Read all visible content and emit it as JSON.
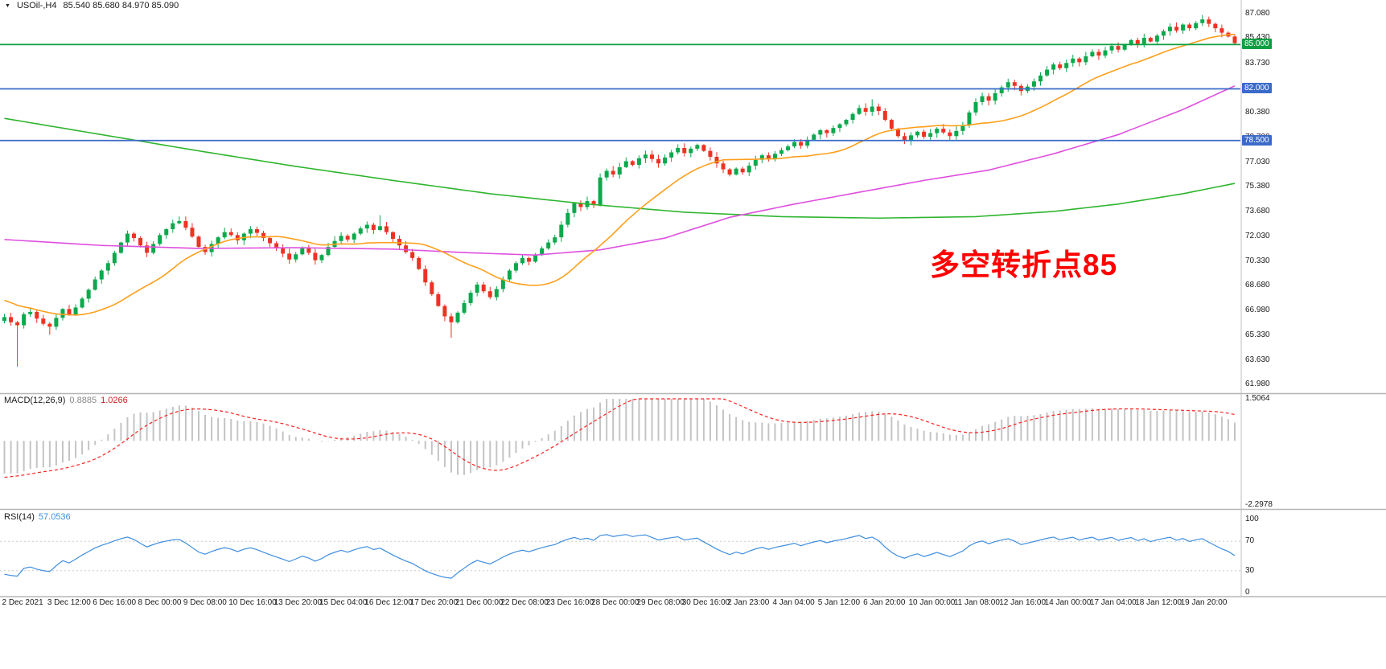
{
  "header": {
    "dropdown_icon": "▼",
    "symbol": "USOil-,H4",
    "ohlc": "85.540 85.680 84.970 85.090"
  },
  "annotation": {
    "text": "多空转折点85",
    "color": "#ff0000"
  },
  "macd_panel": {
    "label": "MACD(12,26,9)",
    "value_macd": "0.8885",
    "value_signal": "1.0266",
    "axis_max": "1.5064",
    "axis_min": "-2.2978"
  },
  "rsi_panel": {
    "label": "RSI(14)",
    "value": "57.0536",
    "axis_labels": [
      "100",
      "70",
      "30",
      "0"
    ]
  },
  "chart_data": {
    "type": "candlestick",
    "symbol": "USOil-",
    "timeframe": "H4",
    "current_ohlc": {
      "open": 85.54,
      "high": 85.68,
      "low": 84.97,
      "close": 85.09
    },
    "visible_price_range": [
      61.4,
      87.25
    ],
    "first_open": 66.3,
    "closes": [
      66.55,
      66.2,
      66.0,
      66.75,
      66.9,
      66.45,
      66.1,
      65.9,
      66.5,
      67.1,
      66.7,
      67.2,
      67.8,
      68.4,
      69.1,
      69.7,
      70.2,
      70.9,
      71.6,
      72.2,
      71.9,
      71.4,
      70.9,
      71.5,
      72.1,
      72.5,
      72.9,
      73.05,
      72.6,
      72.0,
      71.3,
      70.95,
      71.5,
      71.95,
      72.3,
      72.1,
      71.75,
      72.2,
      72.5,
      72.25,
      71.9,
      71.55,
      71.2,
      70.85,
      70.45,
      70.8,
      71.2,
      70.9,
      70.4,
      70.75,
      71.3,
      71.7,
      72.05,
      71.8,
      72.2,
      72.55,
      72.8,
      72.45,
      72.7,
      72.3,
      71.85,
      71.4,
      70.95,
      70.55,
      69.8,
      68.9,
      68.1,
      67.3,
      66.6,
      66.2,
      66.85,
      67.5,
      68.2,
      68.75,
      68.3,
      67.9,
      68.45,
      69.1,
      69.7,
      70.2,
      70.55,
      70.3,
      70.75,
      71.2,
      71.6,
      71.95,
      72.8,
      73.6,
      74.25,
      74.0,
      74.4,
      74.15,
      76.0,
      76.45,
      76.2,
      76.7,
      77.1,
      76.85,
      77.3,
      77.55,
      77.25,
      76.95,
      77.35,
      77.7,
      78.0,
      77.65,
      77.95,
      78.2,
      77.8,
      77.4,
      76.95,
      76.55,
      76.2,
      76.6,
      76.35,
      76.8,
      77.2,
      77.5,
      77.25,
      77.6,
      77.85,
      78.1,
      78.4,
      78.15,
      78.55,
      78.9,
      79.2,
      79.0,
      79.35,
      79.6,
      79.9,
      80.3,
      80.7,
      80.45,
      80.8,
      80.5,
      79.9,
      79.3,
      78.8,
      78.5,
      78.85,
      79.1,
      78.75,
      79.0,
      79.3,
      79.05,
      78.8,
      79.15,
      79.55,
      80.4,
      81.1,
      81.5,
      81.2,
      81.7,
      82.1,
      82.45,
      82.2,
      81.85,
      82.15,
      82.5,
      82.9,
      83.3,
      83.65,
      83.4,
      83.75,
      84.05,
      83.8,
      84.2,
      84.5,
      84.25,
      84.6,
      84.9,
      84.65,
      85.0,
      85.3,
      85.05,
      85.45,
      85.2,
      85.6,
      85.9,
      86.2,
      85.95,
      86.35,
      86.1,
      86.45,
      86.7,
      86.4,
      86.1,
      85.8,
      85.54,
      85.09
    ],
    "wick_overrides": [
      {
        "index": 2,
        "low": 63.2
      },
      {
        "index": 7,
        "low": 65.35
      },
      {
        "index": 58,
        "high": 73.45
      },
      {
        "index": 69,
        "low": 65.15
      },
      {
        "index": 134,
        "high": 81.3
      },
      {
        "index": 185,
        "high": 87.0
      },
      {
        "index": 190,
        "high": 85.68,
        "low": 84.97
      }
    ],
    "horizontal_levels": [
      {
        "price": 85.0,
        "label": "85.000",
        "color": "#0f9f43"
      },
      {
        "price": 82.0,
        "label": "82.000",
        "color": "#3a6bc9"
      },
      {
        "price": 78.5,
        "label": "78.500",
        "color": "#3a6bc9"
      }
    ],
    "price_axis_labels": [
      "87.080",
      "85.430",
      "83.730",
      "82.080",
      "80.380",
      "78.730",
      "77.030",
      "75.380",
      "73.680",
      "72.030",
      "70.330",
      "68.680",
      "66.980",
      "65.330",
      "63.630",
      "61.980"
    ],
    "time_labels": [
      "2 Dec 2021",
      "3 Dec 12:00",
      "6 Dec 16:00",
      "8 Dec 00:00",
      "9 Dec 08:00",
      "10 Dec 16:00",
      "13 Dec 20:00",
      "15 Dec 04:00",
      "16 Dec 12:00",
      "17 Dec 20:00",
      "21 Dec 00:00",
      "22 Dec 08:00",
      "23 Dec 16:00",
      "28 Dec 00:00",
      "29 Dec 08:00",
      "30 Dec 16:00",
      "2 Jan 23:00",
      "4 Jan 04:00",
      "5 Jan 12:00",
      "6 Jan 20:00",
      "10 Jan 00:00",
      "11 Jan 08:00",
      "12 Jan 16:00",
      "14 Jan 00:00",
      "17 Jan 04:00",
      "18 Jan 12:00",
      "19 Jan 20:00"
    ],
    "moving_averages": {
      "fast": {
        "type": "sma",
        "period": 20,
        "color": "#ff9f1c"
      },
      "mid": {
        "color": "#df4fdf",
        "points": [
          [
            0,
            71.8
          ],
          [
            15,
            71.4
          ],
          [
            30,
            71.2
          ],
          [
            45,
            71.25
          ],
          [
            60,
            71.15
          ],
          [
            72,
            70.9
          ],
          [
            82,
            70.75
          ],
          [
            92,
            71.1
          ],
          [
            102,
            71.9
          ],
          [
            112,
            73.3
          ],
          [
            122,
            74.2
          ],
          [
            132,
            75.0
          ],
          [
            142,
            75.8
          ],
          [
            152,
            76.5
          ],
          [
            162,
            77.6
          ],
          [
            172,
            78.9
          ],
          [
            182,
            80.6
          ],
          [
            190,
            82.2
          ]
        ]
      },
      "slow": {
        "color": "#2fb52f",
        "points": [
          [
            0,
            80.0
          ],
          [
            15,
            78.9
          ],
          [
            30,
            77.8
          ],
          [
            45,
            76.75
          ],
          [
            60,
            75.8
          ],
          [
            75,
            74.9
          ],
          [
            90,
            74.2
          ],
          [
            105,
            73.65
          ],
          [
            120,
            73.35
          ],
          [
            135,
            73.25
          ],
          [
            150,
            73.35
          ],
          [
            162,
            73.7
          ],
          [
            172,
            74.2
          ],
          [
            182,
            74.9
          ],
          [
            190,
            75.6
          ]
        ]
      }
    },
    "indicators": {
      "macd": {
        "params": [
          12,
          26,
          9
        ],
        "current_macd": 0.8885,
        "current_signal": 1.0266,
        "scale": [
          -2.2978,
          1.5064
        ],
        "histogram_color": "#c4c4c4",
        "signal_color": "#ff2020"
      },
      "rsi": {
        "period": 14,
        "current": 57.0536,
        "levels": [
          70,
          30
        ],
        "scale": [
          0,
          100
        ],
        "line_color": "#3f8ede"
      }
    },
    "candle_colors": {
      "up": "#0ba94c",
      "down": "#ec3323"
    }
  }
}
